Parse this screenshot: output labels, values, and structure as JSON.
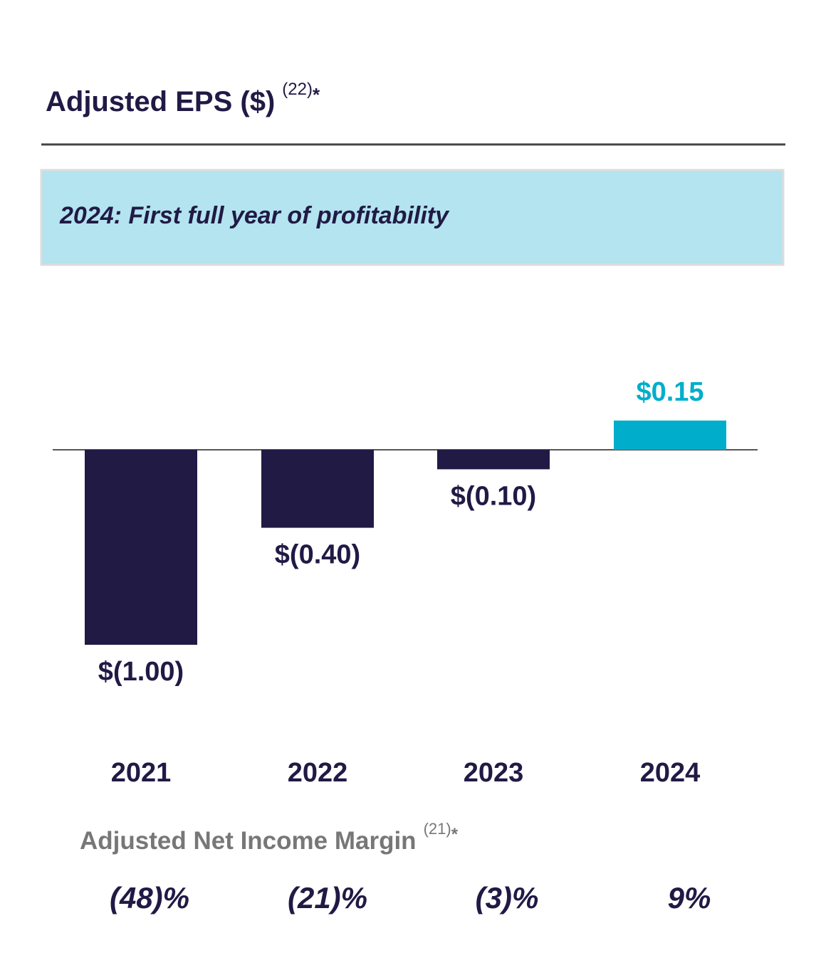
{
  "chart_data": {
    "type": "bar",
    "title": "Adjusted EPS ($)",
    "title_note": "(22)",
    "title_mark": "*",
    "banner": "2024: First full year of profitability",
    "categories": [
      "2021",
      "2022",
      "2023",
      "2024"
    ],
    "values": [
      -1.0,
      -0.4,
      -0.1,
      0.15
    ],
    "value_labels": [
      "$(1.00)",
      "$(0.40)",
      "$(0.10)",
      "$0.15"
    ],
    "colors": [
      "#201a45",
      "#201a45",
      "#201a45",
      "#00aecc"
    ],
    "margin_title": "Adjusted Net Income Margin",
    "margin_note": "(21)",
    "margin_mark": "*",
    "margin_values": [
      "(48)%",
      "(21)%",
      "(3)%",
      "9%"
    ]
  }
}
